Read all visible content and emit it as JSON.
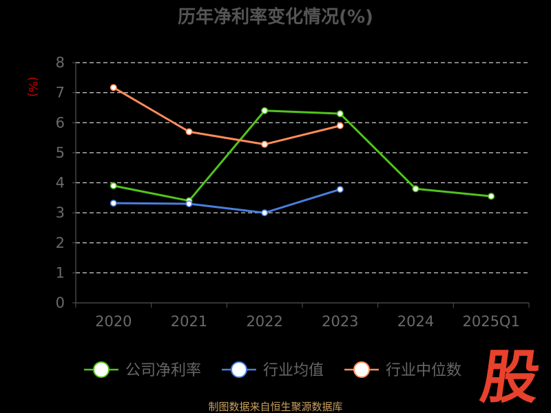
{
  "chart_data": {
    "type": "line",
    "title": "历年净利率变化情况(%)",
    "ylabel": "(%)",
    "categories": [
      "2020",
      "2021",
      "2022",
      "2023",
      "2024",
      "2025Q1"
    ],
    "ylim": [
      0,
      8
    ],
    "yticks": [
      0,
      1,
      2,
      3,
      4,
      5,
      6,
      7,
      8
    ],
    "grid": "horizontal dashed",
    "legend_position": "bottom",
    "series": [
      {
        "name": "公司净利率",
        "color": "#52c41a",
        "values": [
          3.9,
          3.4,
          6.4,
          6.3,
          3.8,
          3.55
        ]
      },
      {
        "name": "行业均值",
        "color": "#4a7fe0",
        "values": [
          3.32,
          3.3,
          3.0,
          3.78,
          null,
          null
        ]
      },
      {
        "name": "行业中位数",
        "color": "#ff8c5a",
        "values": [
          7.17,
          5.7,
          5.28,
          5.9,
          null,
          null
        ]
      }
    ]
  },
  "watermark": {
    "text": "股",
    "color": "#e8412c"
  },
  "source": "制图数据来自恒生聚源数据库"
}
